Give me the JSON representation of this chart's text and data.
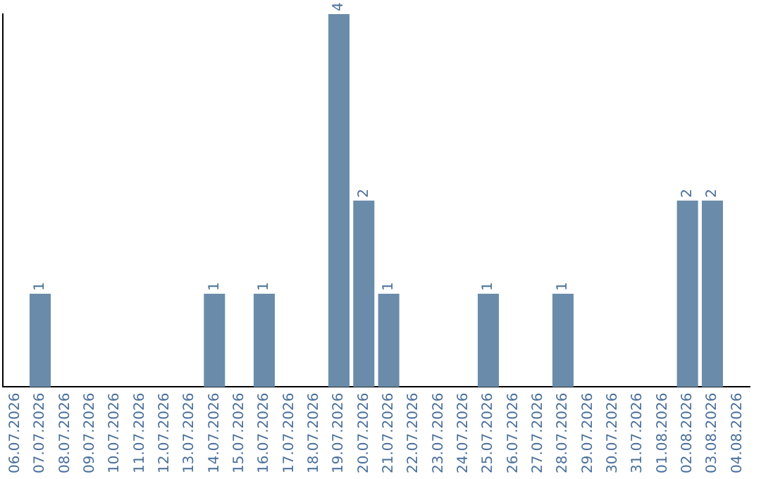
{
  "chart_data": {
    "type": "bar",
    "categories": [
      "06.07.2026",
      "07.07.2026",
      "08.07.2026",
      "09.07.2026",
      "10.07.2026",
      "11.07.2026",
      "12.07.2026",
      "13.07.2026",
      "14.07.2026",
      "15.07.2026",
      "16.07.2026",
      "17.07.2026",
      "18.07.2026",
      "19.07.2026",
      "20.07.2026",
      "21.07.2026",
      "22.07.2026",
      "23.07.2026",
      "24.07.2026",
      "25.07.2026",
      "26.07.2026",
      "27.07.2026",
      "28.07.2026",
      "29.07.2026",
      "30.07.2026",
      "31.07.2026",
      "01.08.2026",
      "02.08.2026",
      "03.08.2026",
      "04.08.2026"
    ],
    "values": [
      0,
      1,
      0,
      0,
      0,
      0,
      0,
      0,
      1,
      0,
      1,
      0,
      0,
      4,
      2,
      1,
      0,
      0,
      0,
      1,
      0,
      0,
      1,
      0,
      0,
      0,
      0,
      2,
      2,
      0
    ],
    "value_labels": [
      null,
      "1",
      null,
      null,
      null,
      null,
      null,
      null,
      "1",
      null,
      "1",
      null,
      null,
      "4",
      "2",
      "1",
      null,
      null,
      null,
      "1",
      null,
      null,
      "1",
      null,
      null,
      null,
      null,
      "2",
      "2",
      null
    ],
    "color": "#6a8caa",
    "grid": false,
    "legend": false
  }
}
